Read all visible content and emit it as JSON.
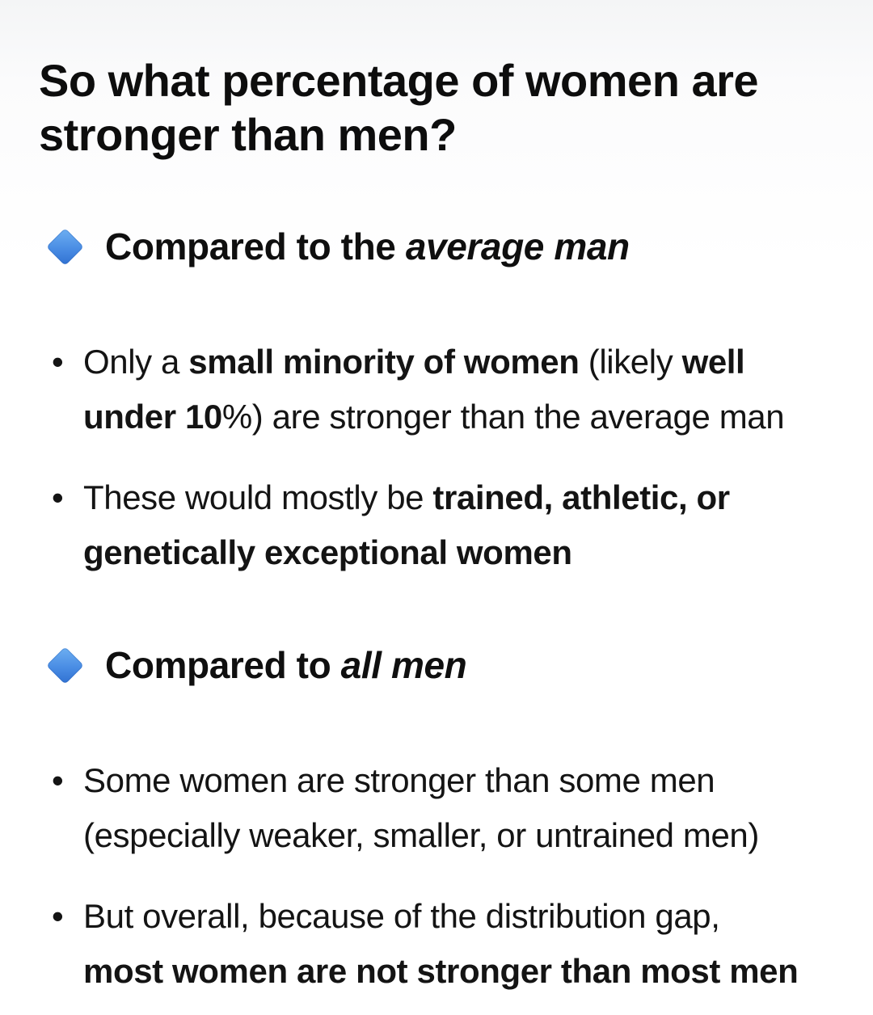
{
  "title": {
    "lines": [
      "So what percentage of women are",
      "stronger than men?"
    ]
  },
  "colors": {
    "text": "#111111",
    "background": "#ffffff",
    "background_top": "#f4f5f6",
    "diamond_top": "#6fb1f2",
    "diamond_bottom": "#2f70d1"
  },
  "icons": {
    "section_marker": "blue-diamond-icon"
  },
  "sections": [
    {
      "heading": {
        "segments": [
          {
            "text": "Compared to the "
          },
          {
            "text": "average man"
          }
        ]
      },
      "bullets": [
        {
          "lines": [
            {
              "segments": [
                {
                  "text": "Only a "
                },
                {
                  "text": "small minority of women"
                },
                {
                  "text": " (likely "
                },
                {
                  "text": "well"
                }
              ]
            },
            {
              "segments": [
                {
                  "text": "under 10"
                },
                {
                  "text": "%) are stronger than the average man"
                }
              ]
            }
          ]
        },
        {
          "lines": [
            {
              "segments": [
                {
                  "text": "These would mostly be "
                },
                {
                  "text": "trained, athletic, or"
                }
              ]
            },
            {
              "segments": [
                {
                  "text": "genetically exceptional women"
                }
              ]
            }
          ]
        }
      ]
    },
    {
      "heading": {
        "segments": [
          {
            "text": "Compared to "
          },
          {
            "text": "all men"
          }
        ]
      },
      "bullets": [
        {
          "lines": [
            {
              "segments": [
                {
                  "text": "Some women are stronger than some men"
                }
              ]
            },
            {
              "segments": [
                {
                  "text": "(especially weaker, smaller, or untrained men)"
                }
              ]
            }
          ]
        },
        {
          "lines": [
            {
              "segments": [
                {
                  "text": "But overall, because of the distribution gap,"
                }
              ]
            },
            {
              "segments": [
                {
                  "text": "most women are not stronger than most men"
                }
              ]
            }
          ]
        }
      ]
    }
  ]
}
